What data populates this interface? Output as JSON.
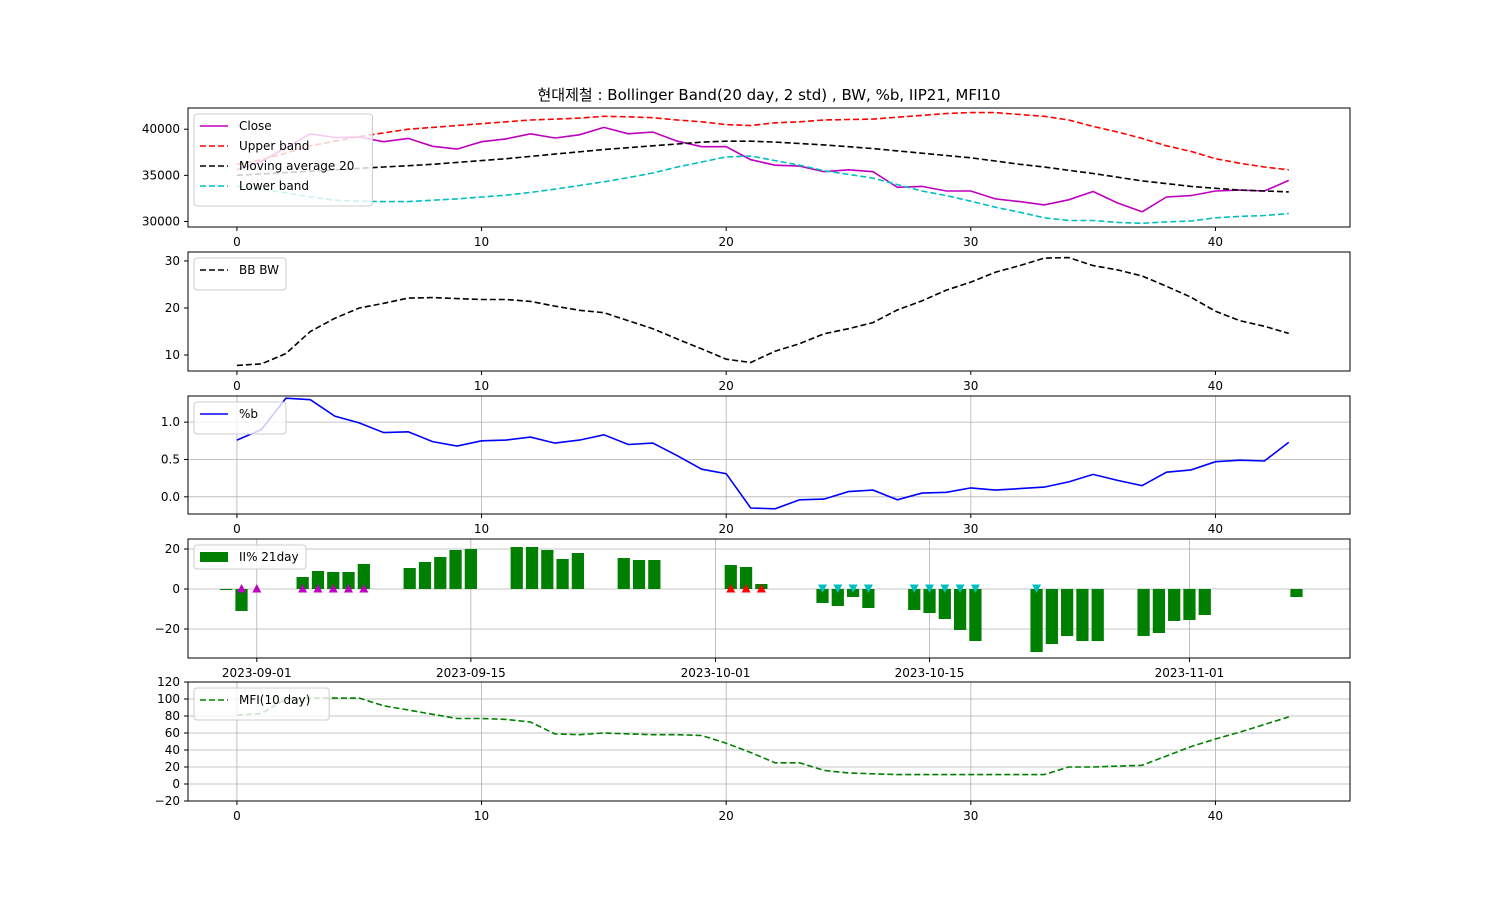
{
  "title": "현대제철 : Bollinger Band(20 day, 2 std) , BW, %b, IIP21, MFI10",
  "colors": {
    "close": "#bf00bf",
    "upper": "#ff0000",
    "ma": "#000000",
    "lower": "#00bfbf",
    "bw": "#000000",
    "pb": "#0000ff",
    "ii_bar": "#008000",
    "buy_marker": "#bf00bf",
    "buy_marker2": "#ff0000",
    "sell_marker": "#00bfbf",
    "mfi": "#008000",
    "grid": "#b0b0b0"
  },
  "chart_data": [
    {
      "id": "price",
      "type": "line",
      "x": [
        0,
        1,
        2,
        3,
        4,
        5,
        6,
        7,
        8,
        9,
        10,
        11,
        12,
        13,
        14,
        15,
        16,
        17,
        18,
        19,
        20,
        21,
        22,
        23,
        24,
        25,
        26,
        27,
        28,
        29,
        30,
        31,
        32,
        33,
        34,
        35,
        36,
        37,
        38,
        39,
        40,
        41,
        42,
        43
      ],
      "series": [
        {
          "name": "Close",
          "values": [
            35600,
            36500,
            38000,
            39500,
            39100,
            39150,
            38650,
            39000,
            38150,
            37850,
            38650,
            38950,
            39500,
            39050,
            39400,
            40200,
            39500,
            39700,
            38700,
            38100,
            38100,
            36700,
            36100,
            36000,
            35400,
            35600,
            35400,
            33700,
            33800,
            33300,
            33300,
            32450,
            32150,
            31800,
            32350,
            33250,
            32000,
            31050,
            32650,
            32800,
            33300,
            33400,
            33300,
            34450
          ],
          "style": "solid",
          "color_key": "close"
        },
        {
          "name": "Upper band",
          "values": [
            36200,
            36700,
            37400,
            38200,
            38700,
            39200,
            39600,
            40000,
            40200,
            40400,
            40600,
            40800,
            41000,
            41100,
            41200,
            41400,
            41350,
            41250,
            41000,
            40800,
            40500,
            40400,
            40700,
            40800,
            41000,
            41050,
            41100,
            41300,
            41500,
            41700,
            41800,
            41800,
            41600,
            41400,
            41000,
            40300,
            39700,
            39000,
            38200,
            37600,
            36800,
            36300,
            35900,
            35600
          ],
          "style": "dashed",
          "color_key": "upper"
        },
        {
          "name": "Moving average 20",
          "values": [
            35000,
            35150,
            35300,
            35450,
            35600,
            35750,
            35900,
            36050,
            36200,
            36400,
            36600,
            36800,
            37050,
            37300,
            37550,
            37800,
            38000,
            38200,
            38400,
            38600,
            38700,
            38700,
            38600,
            38450,
            38300,
            38100,
            37900,
            37650,
            37400,
            37150,
            36900,
            36550,
            36200,
            35900,
            35550,
            35200,
            34800,
            34400,
            34100,
            33800,
            33600,
            33400,
            33300,
            33200
          ],
          "style": "dashed",
          "color_key": "ma"
        },
        {
          "name": "Lower band",
          "values": [
            33800,
            33500,
            33100,
            32650,
            32300,
            32200,
            32150,
            32150,
            32300,
            32450,
            32650,
            32850,
            33150,
            33500,
            33900,
            34300,
            34750,
            35250,
            35900,
            36450,
            37000,
            37100,
            36600,
            36100,
            35500,
            35100,
            34700,
            34000,
            33300,
            32800,
            32200,
            31550,
            31000,
            30400,
            30100,
            30100,
            29900,
            29800,
            29950,
            30050,
            30400,
            30550,
            30650,
            30850
          ],
          "style": "dashed",
          "color_key": "lower"
        }
      ],
      "xlabel": "",
      "ylabel": "",
      "xlim": [
        -2,
        45.5
      ],
      "ylim": [
        29400,
        42300
      ],
      "xticks": [
        0,
        10,
        20,
        30,
        40
      ],
      "yticks": [
        30000,
        35000,
        40000
      ],
      "legend": "top-left",
      "grid": false
    },
    {
      "id": "bw",
      "type": "line",
      "x": [
        0,
        1,
        2,
        3,
        4,
        5,
        6,
        7,
        8,
        9,
        10,
        11,
        12,
        13,
        14,
        15,
        16,
        17,
        18,
        19,
        20,
        21,
        22,
        23,
        24,
        25,
        26,
        27,
        28,
        29,
        30,
        31,
        32,
        33,
        34,
        35,
        36,
        37,
        38,
        39,
        40,
        41,
        42,
        43
      ],
      "series": [
        {
          "name": "BB BW",
          "values": [
            7.8,
            8.1,
            10.3,
            15.0,
            17.8,
            20.0,
            21.0,
            22.1,
            22.2,
            22.0,
            21.8,
            21.8,
            21.4,
            20.4,
            19.5,
            19.0,
            17.3,
            15.6,
            13.4,
            11.3,
            9.1,
            8.4,
            10.8,
            12.4,
            14.5,
            15.6,
            16.9,
            19.6,
            21.5,
            23.8,
            25.5,
            27.6,
            29.0,
            30.6,
            30.7,
            29.0,
            28.1,
            26.8,
            24.6,
            22.3,
            19.3,
            17.3,
            16.1,
            14.6
          ],
          "style": "dashed",
          "color_key": "bw"
        }
      ],
      "xlim": [
        -2,
        45.5
      ],
      "ylim": [
        6.6,
        31.9
      ],
      "xticks": [
        0,
        10,
        20,
        30,
        40
      ],
      "yticks": [
        10,
        20,
        30
      ],
      "legend": "top-left",
      "grid": false
    },
    {
      "id": "pb",
      "type": "line",
      "x": [
        0,
        1,
        2,
        3,
        4,
        5,
        6,
        7,
        8,
        9,
        10,
        11,
        12,
        13,
        14,
        15,
        16,
        17,
        18,
        19,
        20,
        21,
        22,
        23,
        24,
        25,
        26,
        27,
        28,
        29,
        30,
        31,
        32,
        33,
        34,
        35,
        36,
        37,
        38,
        39,
        40,
        41,
        42,
        43
      ],
      "series": [
        {
          "name": "%b",
          "values": [
            0.76,
            0.9,
            1.32,
            1.3,
            1.08,
            0.99,
            0.86,
            0.87,
            0.74,
            0.68,
            0.75,
            0.76,
            0.8,
            0.72,
            0.76,
            0.83,
            0.7,
            0.72,
            0.55,
            0.37,
            0.31,
            -0.15,
            -0.16,
            -0.04,
            -0.03,
            0.07,
            0.09,
            -0.04,
            0.05,
            0.06,
            0.12,
            0.09,
            0.11,
            0.13,
            0.2,
            0.3,
            0.22,
            0.15,
            0.33,
            0.36,
            0.47,
            0.49,
            0.48,
            0.73
          ],
          "style": "solid",
          "color_key": "pb"
        }
      ],
      "xlim": [
        -2,
        45.5
      ],
      "ylim": [
        -0.23,
        1.35
      ],
      "xticks": [
        0,
        10,
        20,
        30,
        40
      ],
      "yticks": [
        0.0,
        0.5,
        1.0
      ],
      "ytick_labels": [
        "0.0",
        "0.5",
        "1.0"
      ],
      "legend": "top-left",
      "grid": true
    },
    {
      "id": "ii",
      "type": "bar",
      "dates": [
        -1,
        0,
        1,
        4,
        5,
        6,
        7,
        8,
        11,
        12,
        13,
        14,
        15,
        18,
        19,
        20,
        21,
        22,
        25,
        26,
        27,
        32,
        33,
        34,
        38,
        39,
        40,
        41,
        44,
        45,
        46,
        47,
        48,
        49,
        52,
        53,
        54,
        55,
        56,
        59,
        60,
        61,
        62,
        63,
        64,
        69
      ],
      "values": [
        -0.5,
        -11,
        0,
        6,
        9,
        8.5,
        8.5,
        12.5,
        10.5,
        13.5,
        16,
        19.5,
        20,
        21,
        21,
        19.5,
        15,
        18,
        15.5,
        14.5,
        14.5,
        12,
        11,
        2.5,
        -7,
        -8.5,
        -4,
        -9.5,
        -10.5,
        -12,
        -15,
        -20.5,
        -26,
        0,
        -31.5,
        -27.5,
        -23.5,
        -26,
        -26,
        -23.5,
        -22,
        -16,
        -15.5,
        -13,
        0,
        -4
      ],
      "series_name": "II% 21day",
      "buy_markers": [
        0,
        1,
        4,
        5,
        6,
        7,
        8
      ],
      "buy_markers_red": [
        32,
        33,
        34
      ],
      "sell_markers": [
        38,
        39,
        40,
        41,
        44,
        45,
        46,
        47,
        48,
        52
      ],
      "xlim_days": [
        -3.5,
        72.5
      ],
      "ylim": [
        -34.5,
        25
      ],
      "xticks_days": [
        1,
        15,
        31,
        45,
        62
      ],
      "xtick_labels": [
        "2023-09-01",
        "2023-09-15",
        "2023-10-01",
        "2023-10-15",
        "2023-11-01"
      ],
      "yticks": [
        -20,
        0,
        20
      ],
      "ytick_labels": [
        "−20",
        "0",
        "20"
      ],
      "legend": "top-left",
      "grid": true
    },
    {
      "id": "mfi",
      "type": "line",
      "x": [
        0,
        1,
        2,
        3,
        4,
        5,
        6,
        7,
        8,
        9,
        10,
        11,
        12,
        13,
        14,
        15,
        16,
        17,
        18,
        19,
        20,
        21,
        22,
        23,
        24,
        25,
        26,
        27,
        28,
        29,
        30,
        31,
        32,
        33,
        34,
        35,
        36,
        37,
        38,
        39,
        40,
        41,
        42,
        43
      ],
      "series": [
        {
          "name": "MFI(10 day)",
          "values": [
            81,
            83,
            100,
            101,
            101,
            101,
            92,
            87,
            82,
            77,
            77,
            76,
            73,
            59,
            58,
            60,
            59,
            58,
            58,
            57,
            48,
            37,
            25,
            25,
            16,
            13,
            12,
            11,
            11,
            11,
            11,
            11,
            11,
            11,
            20,
            20,
            21,
            22,
            33,
            44,
            53,
            61,
            70,
            79
          ],
          "style": "dashed",
          "color_key": "mfi"
        }
      ],
      "xlim": [
        -2,
        45.5
      ],
      "ylim": [
        -20,
        120
      ],
      "xticks": [
        0,
        10,
        20,
        30,
        40
      ],
      "yticks": [
        -20,
        0,
        20,
        40,
        60,
        80,
        100,
        120
      ],
      "ytick_labels": [
        "−20",
        "0",
        "20",
        "40",
        "60",
        "80",
        "100",
        "120"
      ],
      "legend": "top-left",
      "grid": true
    }
  ]
}
